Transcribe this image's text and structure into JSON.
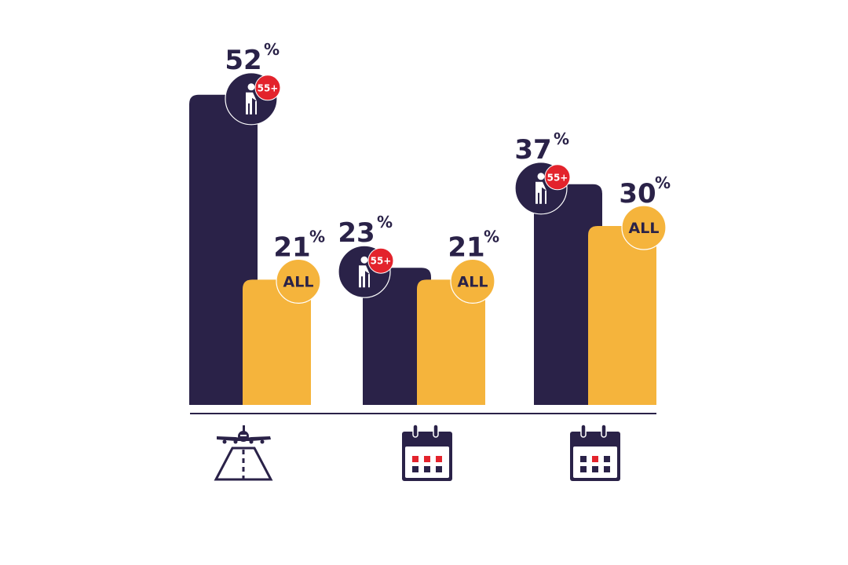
{
  "chart_data": {
    "type": "bar",
    "categories": [
      "airplane-runway-icon",
      "calendar-icon-three-red",
      "calendar-icon-one-red"
    ],
    "series": [
      {
        "name": "55+",
        "values": [
          52,
          23,
          37
        ],
        "color": "#2a2248",
        "badge_icon": "elderly-person-icon"
      },
      {
        "name": "ALL",
        "values": [
          21,
          21,
          30
        ],
        "color": "#f5b43c"
      }
    ],
    "value_suffix": "%",
    "ylim": [
      0,
      60
    ],
    "grid": false,
    "legend": "none",
    "colors": {
      "dark": "#2a2248",
      "yellow": "#f5b43c",
      "red": "#e3232c"
    }
  }
}
